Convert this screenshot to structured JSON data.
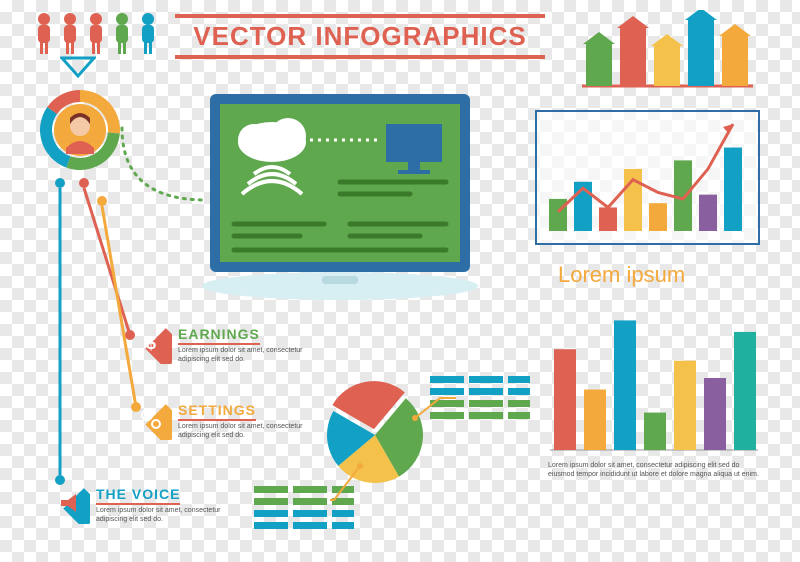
{
  "title": {
    "text": "VECTOR INFOGRAPHICS",
    "color": "#de6151",
    "fontsize": 26
  },
  "people_row": {
    "count": 5,
    "colors": [
      "#de6151",
      "#de6151",
      "#de6151",
      "#5fa84e",
      "#13a0c5"
    ],
    "triangle_color": "#13a0c5"
  },
  "avatar_ring": {
    "segments": [
      {
        "color": "#f3a93c",
        "start": 0,
        "end": 95
      },
      {
        "color": "#5fa84e",
        "start": 95,
        "end": 200
      },
      {
        "color": "#13a0c5",
        "start": 200,
        "end": 305
      },
      {
        "color": "#de6151",
        "start": 305,
        "end": 360
      }
    ],
    "face_bg": "#f3a93c",
    "hair": "#7a3226",
    "skin": "#f4c9a6",
    "shirt": "#de6151"
  },
  "laptop": {
    "frame": "#2c6ea5",
    "screen_bg": "#5fa84e",
    "base": "#d7eef3",
    "cloud": "#ffffff",
    "monitor": "#2c6ea5",
    "wifi": "#ffffff",
    "line_color": "#3a7a2a"
  },
  "arrow_bars": {
    "type": "bar",
    "values": [
      42,
      58,
      40,
      66,
      50
    ],
    "colors": [
      "#5fa84e",
      "#de6151",
      "#f4c24b",
      "#13a0c5",
      "#f3a93c"
    ],
    "baseline": "#de6151"
  },
  "combo_chart": {
    "type": "bar+line",
    "frame": "#2c6ea5",
    "bars": [
      {
        "v": 30,
        "c": "#5fa84e"
      },
      {
        "v": 46,
        "c": "#13a0c5"
      },
      {
        "v": 22,
        "c": "#de6151"
      },
      {
        "v": 58,
        "c": "#f4c24b"
      },
      {
        "v": 26,
        "c": "#f3a93c"
      },
      {
        "v": 66,
        "c": "#5fa84e"
      },
      {
        "v": 34,
        "c": "#8a5fa0"
      },
      {
        "v": 78,
        "c": "#13a0c5"
      }
    ],
    "line_color": "#de6151",
    "line_points": [
      18,
      40,
      22,
      48,
      36,
      30,
      58,
      100
    ]
  },
  "sections": {
    "earnings": {
      "label": "EARNINGS",
      "color": "#5fa84e",
      "icon_bg": "#de6151",
      "desc": "Lorem ipsum dolor sit amet, consectetur adipiscing elit sed do."
    },
    "settings": {
      "label": "SETTINGS",
      "color": "#f3a93c",
      "icon_bg": "#f3a93c",
      "desc": "Lorem ipsum dolor sit amet, consectetur adipiscing elit sed do."
    },
    "voice": {
      "label": "THE VOICE",
      "color": "#13a0c5",
      "icon_bg": "#13a0c5",
      "desc": "Lorem ipsum dolor sit amet, consectetur adipiscing elit sed do."
    }
  },
  "pie": {
    "type": "pie",
    "slices": [
      {
        "c": "#de6151",
        "start": -60,
        "end": 40
      },
      {
        "c": "#5fa84e",
        "start": 40,
        "end": 150
      },
      {
        "c": "#f4c24b",
        "start": 150,
        "end": 230
      },
      {
        "c": "#13a0c5",
        "start": 230,
        "end": 300
      }
    ]
  },
  "text_blocks": {
    "left": {
      "rows": [
        [
          "#5fa84e",
          "#5fa84e",
          "#5fa84e"
        ],
        [
          "#5fa84e",
          "#5fa84e",
          "#5fa84e"
        ],
        [
          "#13a0c5",
          "#13a0c5",
          "#13a0c5"
        ],
        [
          "#13a0c5",
          "#13a0c5",
          "#13a0c5"
        ]
      ]
    },
    "right": {
      "rows": [
        [
          "#13a0c5",
          "#13a0c5",
          "#13a0c5"
        ],
        [
          "#13a0c5",
          "#13a0c5",
          "#13a0c5"
        ],
        [
          "#5fa84e",
          "#5fa84e",
          "#5fa84e"
        ],
        [
          "#5fa84e",
          "#5fa84e",
          "#5fa84e"
        ]
      ]
    }
  },
  "lorem_chart": {
    "title": "Lorem ipsum",
    "title_color": "#f3a93c",
    "type": "bar",
    "bars": [
      {
        "v": 70,
        "c": "#de6151"
      },
      {
        "v": 42,
        "c": "#f3a93c"
      },
      {
        "v": 90,
        "c": "#13a0c5"
      },
      {
        "v": 26,
        "c": "#5fa84e"
      },
      {
        "v": 62,
        "c": "#f4c24b"
      },
      {
        "v": 50,
        "c": "#8a5fa0"
      },
      {
        "v": 82,
        "c": "#20b0a0"
      }
    ],
    "footer": "Lorem ipsum dolor sit amet, consectetur adipiscing elit sed do eiusmod tempor incididunt ut labore et dolore magna aliqua ut enim."
  },
  "connectors": {
    "blue": "#13a0c5",
    "red": "#de6151",
    "orange": "#f3a93c",
    "green_dots": "#5fa84e"
  }
}
